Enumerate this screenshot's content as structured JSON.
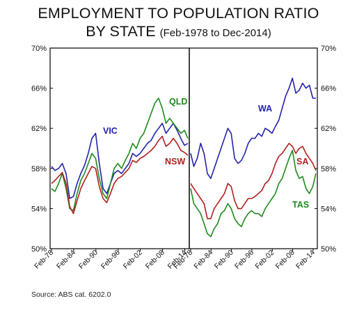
{
  "title_line1": "EMPLOYMENT TO POPULATION RATIO",
  "title_line2": "BY STATE",
  "title_subtitle": "(Feb-1978 to Dec-2014)",
  "source": "Source: ABS cat. 6202.0",
  "chart_data": [
    {
      "type": "line",
      "panel": "left",
      "xlim": [
        1978.08,
        2014.92
      ],
      "ylim": [
        50,
        70
      ],
      "yticks": [
        50,
        54,
        58,
        62,
        66,
        70
      ],
      "ytick_labels": [
        "50%",
        "54%",
        "58%",
        "62%",
        "66%",
        "70%"
      ],
      "xticks": [
        1978.08,
        1984.08,
        1990.08,
        1996.08,
        2002.08,
        2008.08,
        2014.08
      ],
      "xtick_labels": [
        "Feb-78",
        "Feb-84",
        "Feb-90",
        "Feb-96",
        "Feb-02",
        "Feb-08",
        "Feb-14"
      ],
      "series": [
        {
          "name": "VIC",
          "color": "#2222aa",
          "x": [
            1978,
            1979,
            1980,
            1981,
            1982,
            1983,
            1984,
            1985,
            1986,
            1987,
            1988,
            1989,
            1990,
            1991,
            1992,
            1993,
            1994,
            1995,
            1996,
            1997,
            1998,
            1999,
            2000,
            2001,
            2002,
            2003,
            2004,
            2005,
            2006,
            2007,
            2008,
            2009,
            2010,
            2011,
            2012,
            2013,
            2014,
            2014.9
          ],
          "y": [
            58.2,
            57.8,
            58.0,
            58.5,
            57.5,
            55.0,
            55.2,
            56.5,
            57.5,
            58.3,
            59.5,
            61.0,
            61.5,
            58.5,
            56.0,
            55.5,
            56.5,
            57.5,
            57.8,
            57.5,
            58.0,
            58.5,
            59.5,
            59.2,
            59.5,
            60.0,
            60.5,
            60.8,
            61.5,
            62.0,
            62.5,
            61.5,
            62.0,
            62.5,
            61.8,
            61.0,
            60.3,
            60.5
          ]
        },
        {
          "name": "QLD",
          "color": "#1c8a1c",
          "x": [
            1978,
            1979,
            1980,
            1981,
            1982,
            1983,
            1984,
            1985,
            1986,
            1987,
            1988,
            1989,
            1990,
            1991,
            1992,
            1993,
            1994,
            1995,
            1996,
            1997,
            1998,
            1999,
            2000,
            2001,
            2002,
            2003,
            2004,
            2005,
            2006,
            2007,
            2008,
            2009,
            2010,
            2011,
            2012,
            2013,
            2014,
            2014.9
          ],
          "y": [
            56.0,
            55.7,
            56.5,
            57.5,
            56.0,
            54.0,
            53.8,
            55.5,
            56.8,
            57.5,
            58.5,
            59.5,
            59.0,
            57.0,
            55.5,
            55.0,
            56.5,
            58.0,
            58.5,
            58.0,
            58.8,
            59.5,
            60.5,
            60.0,
            61.0,
            61.5,
            62.5,
            63.5,
            64.5,
            65.0,
            64.0,
            62.5,
            63.0,
            62.5,
            62.0,
            61.5,
            61.8,
            61.0
          ]
        },
        {
          "name": "NSW",
          "color": "#b21e1e",
          "x": [
            1978,
            1979,
            1980,
            1981,
            1982,
            1983,
            1984,
            1985,
            1986,
            1987,
            1988,
            1989,
            1990,
            1991,
            1992,
            1993,
            1994,
            1995,
            1996,
            1997,
            1998,
            1999,
            2000,
            2001,
            2002,
            2003,
            2004,
            2005,
            2006,
            2007,
            2008,
            2009,
            2010,
            2011,
            2012,
            2013,
            2014,
            2014.9
          ],
          "y": [
            56.5,
            56.8,
            57.2,
            57.6,
            56.5,
            54.2,
            53.5,
            54.8,
            56.0,
            56.8,
            57.5,
            58.2,
            58.0,
            56.2,
            55.0,
            54.6,
            55.5,
            56.5,
            57.0,
            57.2,
            57.6,
            58.0,
            58.8,
            58.6,
            59.0,
            59.2,
            59.5,
            59.8,
            60.2,
            60.8,
            61.2,
            60.2,
            60.5,
            61.0,
            60.5,
            59.8,
            59.6,
            59.3
          ]
        }
      ],
      "labels": [
        {
          "text": "VIC",
          "series": "VIC"
        },
        {
          "text": "QLD",
          "series": "QLD"
        },
        {
          "text": "NSW",
          "series": "NSW"
        }
      ]
    },
    {
      "type": "line",
      "panel": "right",
      "xlim": [
        1978.08,
        2014.92
      ],
      "ylim": [
        50,
        70
      ],
      "yticks": [
        50,
        54,
        58,
        62,
        66,
        70
      ],
      "ytick_labels": [
        "50%",
        "54%",
        "58%",
        "62%",
        "66%",
        "70%"
      ],
      "xticks": [
        1978.08,
        1984.08,
        1990.08,
        1996.08,
        2002.08,
        2008.08,
        2014.08
      ],
      "xtick_labels": [
        "Feb-78",
        "Feb-84",
        "Feb-90",
        "Feb-96",
        "Feb-02",
        "Feb-08",
        "Feb-14"
      ],
      "series": [
        {
          "name": "WA",
          "color": "#2222aa",
          "x": [
            1978,
            1979,
            1980,
            1981,
            1982,
            1983,
            1984,
            1985,
            1986,
            1987,
            1988,
            1989,
            1990,
            1991,
            1992,
            1993,
            1994,
            1995,
            1996,
            1997,
            1998,
            1999,
            2000,
            2001,
            2002,
            2003,
            2004,
            2005,
            2006,
            2007,
            2008,
            2009,
            2010,
            2011,
            2012,
            2013,
            2014,
            2014.9
          ],
          "y": [
            59.5,
            58.2,
            59.0,
            60.5,
            59.5,
            57.5,
            57.0,
            58.0,
            59.0,
            60.0,
            61.0,
            62.0,
            61.5,
            59.0,
            58.5,
            58.8,
            59.5,
            60.5,
            61.0,
            61.0,
            61.5,
            61.2,
            62.0,
            61.8,
            61.5,
            62.2,
            62.8,
            64.0,
            65.2,
            66.0,
            67.0,
            65.5,
            65.8,
            66.5,
            66.0,
            66.3,
            65.0,
            65.0
          ]
        },
        {
          "name": "SA",
          "color": "#b21e1e",
          "x": [
            1978,
            1979,
            1980,
            1981,
            1982,
            1983,
            1984,
            1985,
            1986,
            1987,
            1988,
            1989,
            1990,
            1991,
            1992,
            1993,
            1994,
            1995,
            1996,
            1997,
            1998,
            1999,
            2000,
            2001,
            2002,
            2003,
            2004,
            2005,
            2006,
            2007,
            2008,
            2009,
            2010,
            2011,
            2012,
            2013,
            2014,
            2014.9
          ],
          "y": [
            56.5,
            56.0,
            55.5,
            55.0,
            54.5,
            53.0,
            53.0,
            54.0,
            54.5,
            55.0,
            55.5,
            56.5,
            56.2,
            54.8,
            54.0,
            54.0,
            54.5,
            55.0,
            55.0,
            55.2,
            55.5,
            55.8,
            56.5,
            56.8,
            57.5,
            58.5,
            59.2,
            59.5,
            60.0,
            60.5,
            60.2,
            59.5,
            60.0,
            60.2,
            59.5,
            59.0,
            58.5,
            57.8
          ]
        },
        {
          "name": "TAS",
          "color": "#1c8a1c",
          "x": [
            1978,
            1979,
            1980,
            1981,
            1982,
            1983,
            1984,
            1985,
            1986,
            1987,
            1988,
            1989,
            1990,
            1991,
            1992,
            1993,
            1994,
            1995,
            1996,
            1997,
            1998,
            1999,
            2000,
            2001,
            2002,
            2003,
            2004,
            2005,
            2006,
            2007,
            2008,
            2009,
            2010,
            2011,
            2012,
            2013,
            2014,
            2014.9
          ],
          "y": [
            56.0,
            54.5,
            54.0,
            53.5,
            52.5,
            51.5,
            51.2,
            52.0,
            52.5,
            53.5,
            53.8,
            54.5,
            54.0,
            53.0,
            52.5,
            52.2,
            53.0,
            53.5,
            53.8,
            53.5,
            53.5,
            53.2,
            54.0,
            54.5,
            55.0,
            55.5,
            56.5,
            57.0,
            58.0,
            59.0,
            59.8,
            57.8,
            57.0,
            57.2,
            56.0,
            55.5,
            56.2,
            57.5
          ]
        }
      ],
      "labels": [
        {
          "text": "WA",
          "series": "WA"
        },
        {
          "text": "SA",
          "series": "SA"
        },
        {
          "text": "TAS",
          "series": "TAS"
        }
      ]
    }
  ]
}
